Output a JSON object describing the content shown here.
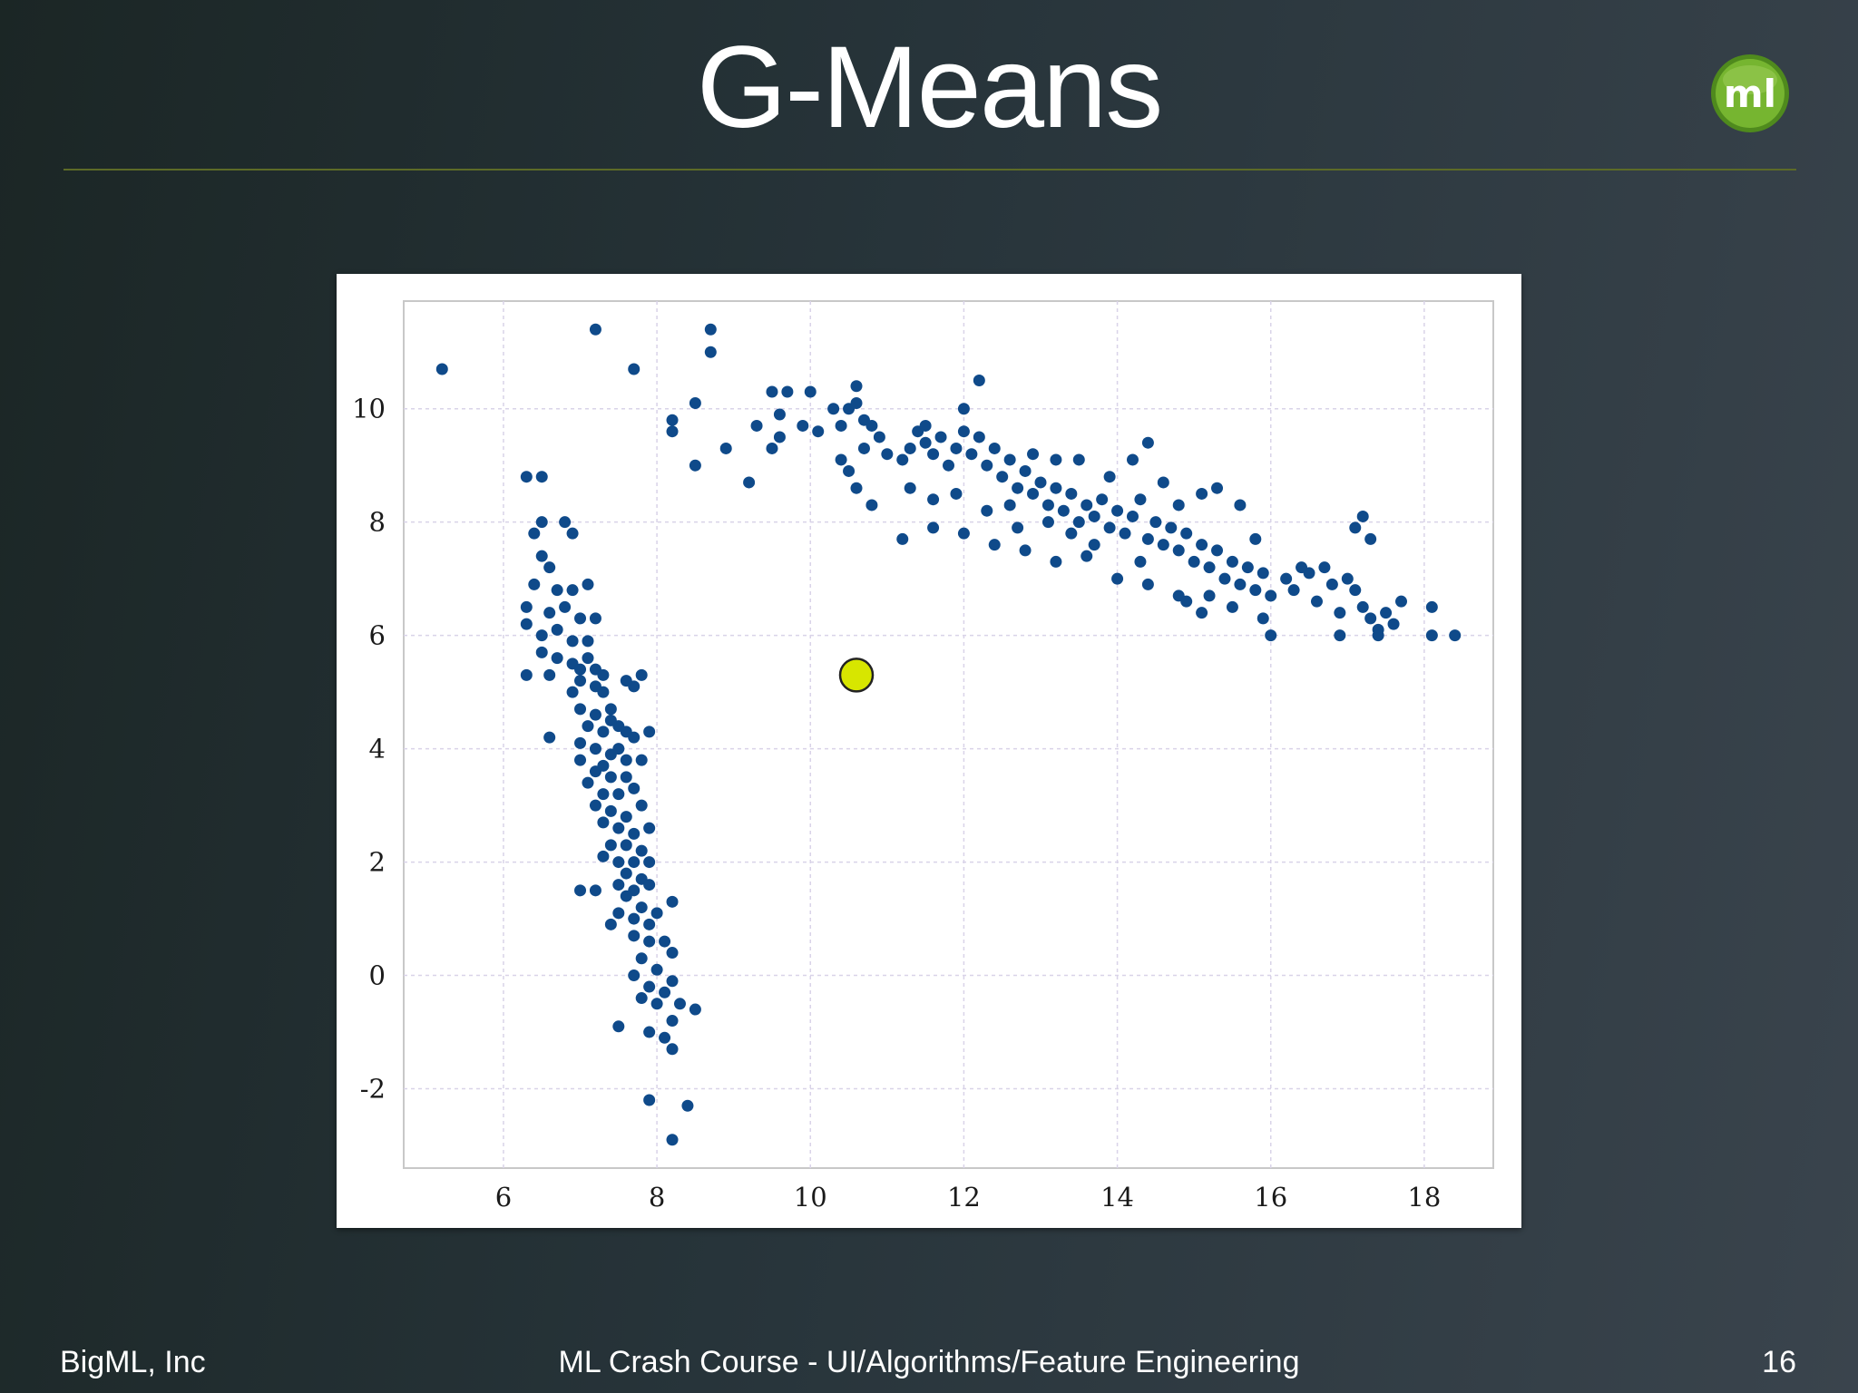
{
  "slide": {
    "title": "G-Means",
    "logo_text": "ml",
    "footer_left": "BigML, Inc",
    "footer_center": "ML Crash Course - UI/Algorithms/Feature Engineering",
    "page_number": "16"
  },
  "colors": {
    "point": "#0f4a8a",
    "centroid": "#d7e600",
    "logo_green": "#6aa52a"
  },
  "chart_data": {
    "type": "scatter",
    "title": "",
    "xlabel": "",
    "ylabel": "",
    "xlim": [
      4.7,
      18.9
    ],
    "ylim": [
      -3.4,
      11.9
    ],
    "x_ticks": [
      6,
      8,
      10,
      12,
      14,
      16,
      18
    ],
    "y_ticks": [
      -2,
      0,
      2,
      4,
      6,
      8,
      10
    ],
    "x_tick_labels": [
      "6",
      "8",
      "10",
      "12",
      "14",
      "16",
      "18"
    ],
    "y_tick_labels": [
      "-2",
      "0",
      "2",
      "4",
      "6",
      "8",
      "10"
    ],
    "grid": true,
    "series": [
      {
        "points": [
          [
            5.2,
            10.7
          ],
          [
            7.2,
            11.4
          ],
          [
            7.7,
            10.7
          ],
          [
            8.7,
            11.4
          ],
          [
            8.7,
            11.0
          ],
          [
            6.3,
            8.8
          ],
          [
            6.5,
            8.8
          ],
          [
            6.5,
            8.0
          ],
          [
            6.4,
            7.8
          ],
          [
            6.8,
            8.0
          ],
          [
            6.9,
            7.8
          ],
          [
            6.5,
            7.4
          ],
          [
            6.6,
            7.2
          ],
          [
            6.4,
            6.9
          ],
          [
            6.7,
            6.8
          ],
          [
            6.9,
            6.8
          ],
          [
            7.1,
            6.9
          ],
          [
            6.3,
            6.5
          ],
          [
            6.6,
            6.4
          ],
          [
            6.8,
            6.5
          ],
          [
            7.0,
            6.3
          ],
          [
            7.2,
            6.3
          ],
          [
            6.3,
            6.2
          ],
          [
            6.5,
            6.0
          ],
          [
            6.7,
            6.1
          ],
          [
            6.9,
            5.9
          ],
          [
            7.1,
            5.9
          ],
          [
            6.3,
            5.3
          ],
          [
            6.6,
            5.3
          ],
          [
            6.5,
            5.7
          ],
          [
            6.7,
            5.6
          ],
          [
            6.9,
            5.5
          ],
          [
            7.0,
            5.4
          ],
          [
            7.1,
            5.6
          ],
          [
            7.2,
            5.4
          ],
          [
            7.3,
            5.3
          ],
          [
            7.0,
            5.2
          ],
          [
            6.9,
            5.0
          ],
          [
            7.2,
            5.1
          ],
          [
            7.3,
            5.0
          ],
          [
            7.4,
            4.7
          ],
          [
            7.6,
            5.2
          ],
          [
            7.7,
            5.1
          ],
          [
            7.8,
            5.3
          ],
          [
            7.0,
            4.7
          ],
          [
            7.2,
            4.6
          ],
          [
            7.1,
            4.4
          ],
          [
            7.3,
            4.3
          ],
          [
            7.5,
            4.4
          ],
          [
            7.4,
            4.5
          ],
          [
            7.6,
            4.3
          ],
          [
            7.7,
            4.2
          ],
          [
            7.9,
            4.3
          ],
          [
            6.6,
            4.2
          ],
          [
            7.0,
            4.1
          ],
          [
            7.2,
            4.0
          ],
          [
            7.4,
            3.9
          ],
          [
            7.5,
            4.0
          ],
          [
            7.3,
            3.7
          ],
          [
            7.6,
            3.8
          ],
          [
            7.8,
            3.8
          ],
          [
            7.0,
            3.8
          ],
          [
            7.2,
            3.6
          ],
          [
            7.4,
            3.5
          ],
          [
            7.6,
            3.5
          ],
          [
            7.7,
            3.3
          ],
          [
            7.1,
            3.4
          ],
          [
            7.3,
            3.2
          ],
          [
            7.5,
            3.2
          ],
          [
            7.8,
            3.0
          ],
          [
            7.2,
            3.0
          ],
          [
            7.4,
            2.9
          ],
          [
            7.6,
            2.8
          ],
          [
            7.3,
            2.7
          ],
          [
            7.5,
            2.6
          ],
          [
            7.7,
            2.5
          ],
          [
            7.9,
            2.6
          ],
          [
            7.4,
            2.3
          ],
          [
            7.6,
            2.3
          ],
          [
            7.8,
            2.2
          ],
          [
            7.3,
            2.1
          ],
          [
            7.5,
            2.0
          ],
          [
            7.7,
            2.0
          ],
          [
            7.9,
            2.0
          ],
          [
            7.6,
            1.8
          ],
          [
            7.8,
            1.7
          ],
          [
            7.5,
            1.6
          ],
          [
            7.7,
            1.5
          ],
          [
            7.9,
            1.6
          ],
          [
            7.0,
            1.5
          ],
          [
            7.2,
            1.5
          ],
          [
            7.6,
            1.4
          ],
          [
            7.8,
            1.2
          ],
          [
            8.0,
            1.1
          ],
          [
            7.5,
            1.1
          ],
          [
            7.7,
            1.0
          ],
          [
            7.9,
            0.9
          ],
          [
            8.2,
            1.3
          ],
          [
            7.4,
            0.9
          ],
          [
            7.7,
            0.7
          ],
          [
            7.9,
            0.6
          ],
          [
            8.1,
            0.6
          ],
          [
            8.2,
            0.4
          ],
          [
            7.8,
            0.3
          ],
          [
            8.0,
            0.1
          ],
          [
            7.7,
            0.0
          ],
          [
            7.9,
            -0.2
          ],
          [
            8.1,
            -0.3
          ],
          [
            8.2,
            -0.1
          ],
          [
            7.8,
            -0.4
          ],
          [
            8.0,
            -0.5
          ],
          [
            8.3,
            -0.5
          ],
          [
            8.5,
            -0.6
          ],
          [
            8.2,
            -0.8
          ],
          [
            7.5,
            -0.9
          ],
          [
            7.9,
            -1.0
          ],
          [
            8.1,
            -1.1
          ],
          [
            8.2,
            -1.3
          ],
          [
            7.9,
            -2.2
          ],
          [
            8.4,
            -2.3
          ],
          [
            8.2,
            -2.9
          ],
          [
            8.2,
            9.8
          ],
          [
            8.2,
            9.6
          ],
          [
            8.5,
            10.1
          ],
          [
            8.5,
            9.0
          ],
          [
            8.9,
            9.3
          ],
          [
            9.2,
            8.7
          ],
          [
            9.3,
            9.7
          ],
          [
            9.5,
            9.3
          ],
          [
            9.6,
            9.5
          ],
          [
            9.5,
            10.3
          ],
          [
            9.7,
            10.3
          ],
          [
            9.6,
            9.9
          ],
          [
            9.9,
            9.7
          ],
          [
            10.0,
            10.3
          ],
          [
            10.1,
            9.6
          ],
          [
            10.3,
            10.0
          ],
          [
            10.4,
            9.7
          ],
          [
            10.5,
            10.0
          ],
          [
            10.6,
            10.1
          ],
          [
            10.6,
            10.4
          ],
          [
            10.7,
            9.8
          ],
          [
            10.8,
            9.7
          ],
          [
            10.4,
            9.1
          ],
          [
            10.5,
            8.9
          ],
          [
            10.7,
            9.3
          ],
          [
            10.9,
            9.5
          ],
          [
            11.0,
            9.2
          ],
          [
            11.2,
            9.1
          ],
          [
            11.3,
            9.3
          ],
          [
            11.5,
            9.4
          ],
          [
            11.4,
            9.6
          ],
          [
            11.6,
            9.2
          ],
          [
            11.7,
            9.5
          ],
          [
            11.8,
            9.0
          ],
          [
            11.9,
            9.3
          ],
          [
            12.0,
            9.6
          ],
          [
            12.1,
            9.2
          ],
          [
            12.2,
            9.5
          ],
          [
            12.3,
            9.0
          ],
          [
            12.4,
            9.3
          ],
          [
            12.5,
            8.8
          ],
          [
            12.6,
            9.1
          ],
          [
            12.7,
            8.6
          ],
          [
            12.8,
            8.9
          ],
          [
            12.9,
            8.5
          ],
          [
            13.0,
            8.7
          ],
          [
            13.1,
            8.3
          ],
          [
            13.2,
            8.6
          ],
          [
            13.3,
            8.2
          ],
          [
            13.4,
            8.5
          ],
          [
            13.5,
            8.0
          ],
          [
            13.6,
            8.3
          ],
          [
            13.7,
            8.1
          ],
          [
            13.8,
            8.4
          ],
          [
            13.9,
            7.9
          ],
          [
            14.0,
            8.2
          ],
          [
            14.1,
            7.8
          ],
          [
            14.2,
            8.1
          ],
          [
            14.3,
            8.4
          ],
          [
            14.4,
            7.7
          ],
          [
            14.5,
            8.0
          ],
          [
            14.6,
            7.6
          ],
          [
            14.7,
            7.9
          ],
          [
            14.8,
            7.5
          ],
          [
            14.9,
            7.8
          ],
          [
            15.0,
            7.3
          ],
          [
            15.1,
            7.6
          ],
          [
            15.2,
            7.2
          ],
          [
            15.3,
            7.5
          ],
          [
            15.4,
            7.0
          ],
          [
            15.5,
            7.3
          ],
          [
            15.6,
            6.9
          ],
          [
            15.7,
            7.2
          ],
          [
            15.8,
            6.8
          ],
          [
            15.9,
            7.1
          ],
          [
            16.0,
            6.7
          ],
          [
            16.2,
            7.0
          ],
          [
            16.3,
            6.8
          ],
          [
            16.5,
            7.1
          ],
          [
            16.6,
            6.6
          ],
          [
            16.8,
            6.9
          ],
          [
            16.9,
            6.4
          ],
          [
            17.1,
            6.8
          ],
          [
            17.2,
            6.5
          ],
          [
            17.3,
            6.3
          ],
          [
            17.4,
            6.1
          ],
          [
            17.5,
            6.4
          ],
          [
            17.6,
            6.2
          ],
          [
            17.7,
            6.6
          ],
          [
            17.2,
            8.1
          ],
          [
            17.1,
            7.9
          ],
          [
            17.3,
            7.7
          ],
          [
            16.9,
            6.0
          ],
          [
            17.4,
            6.0
          ],
          [
            18.1,
            6.5
          ],
          [
            18.1,
            6.0
          ],
          [
            18.4,
            6.0
          ],
          [
            12.2,
            10.5
          ],
          [
            12.0,
            10.0
          ],
          [
            11.5,
            9.7
          ],
          [
            11.2,
            7.7
          ],
          [
            11.6,
            7.9
          ],
          [
            12.0,
            7.8
          ],
          [
            12.4,
            7.6
          ],
          [
            12.8,
            7.5
          ],
          [
            13.2,
            7.3
          ],
          [
            13.6,
            7.4
          ],
          [
            14.0,
            7.0
          ],
          [
            14.4,
            6.9
          ],
          [
            14.8,
            6.7
          ],
          [
            15.1,
            6.4
          ],
          [
            15.5,
            6.5
          ],
          [
            15.9,
            6.3
          ],
          [
            16.0,
            6.0
          ],
          [
            14.4,
            9.4
          ],
          [
            14.2,
            9.1
          ],
          [
            13.9,
            8.8
          ],
          [
            13.5,
            9.1
          ],
          [
            13.2,
            9.1
          ],
          [
            12.9,
            9.2
          ],
          [
            12.6,
            8.3
          ],
          [
            12.3,
            8.2
          ],
          [
            11.9,
            8.5
          ],
          [
            11.6,
            8.4
          ],
          [
            11.3,
            8.6
          ],
          [
            10.8,
            8.3
          ],
          [
            10.6,
            8.6
          ],
          [
            13.7,
            7.6
          ],
          [
            14.3,
            7.3
          ],
          [
            15.3,
            8.6
          ],
          [
            15.6,
            8.3
          ],
          [
            15.1,
            8.5
          ],
          [
            14.8,
            8.3
          ],
          [
            13.1,
            8.0
          ],
          [
            12.7,
            7.9
          ],
          [
            13.4,
            7.8
          ],
          [
            14.6,
            8.7
          ],
          [
            15.8,
            7.7
          ],
          [
            16.4,
            7.2
          ],
          [
            15.2,
            6.7
          ],
          [
            14.9,
            6.6
          ],
          [
            16.7,
            7.2
          ],
          [
            17.0,
            7.0
          ]
        ]
      },
      {
        "points": [
          [
            10.6,
            5.3
          ]
        ]
      }
    ]
  }
}
